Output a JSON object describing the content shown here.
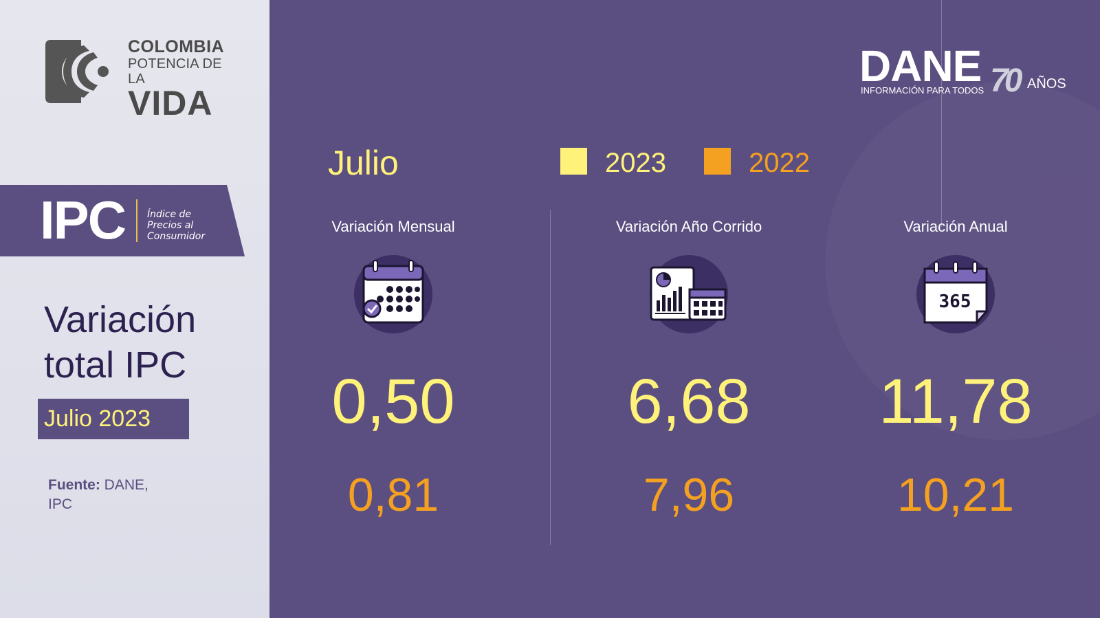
{
  "brand_left": {
    "line1": "COLOMBIA",
    "line2": "POTENCIA DE LA",
    "line3": "VIDA"
  },
  "ipc": {
    "word": "IPC",
    "sub1": "Índice de",
    "sub2": "Precios al",
    "sub3": "Consumidor"
  },
  "title": {
    "line1": "Variación",
    "line2": "total IPC",
    "period": "Julio 2023"
  },
  "source": {
    "label": "Fuente:",
    "text": " DANE, IPC"
  },
  "dane": {
    "word": "DANE",
    "tagline": "INFORMACIÓN PARA TODOS",
    "years": "70",
    "years_label": "AÑOS"
  },
  "legend": {
    "month": "Julio",
    "current": "2023",
    "previous": "2022",
    "current_color": "#fff27a",
    "previous_color": "#f4a020"
  },
  "metrics": [
    {
      "title": "Variación Mensual",
      "icon": "calendar-check-icon",
      "value_2023": "0,50",
      "value_2022": "0,81"
    },
    {
      "title": "Variación Año Corrido",
      "icon": "report-calendar-icon",
      "value_2023": "6,68",
      "value_2022": "7,96"
    },
    {
      "title": "Variación Anual",
      "icon": "calendar-365-icon",
      "value_2023": "11,78",
      "value_2022": "10,21",
      "icon_text": "365"
    }
  ],
  "colors": {
    "panel": "#5b4e80",
    "left_bg": "#e4e4ee",
    "dark_title": "#2d2150"
  }
}
